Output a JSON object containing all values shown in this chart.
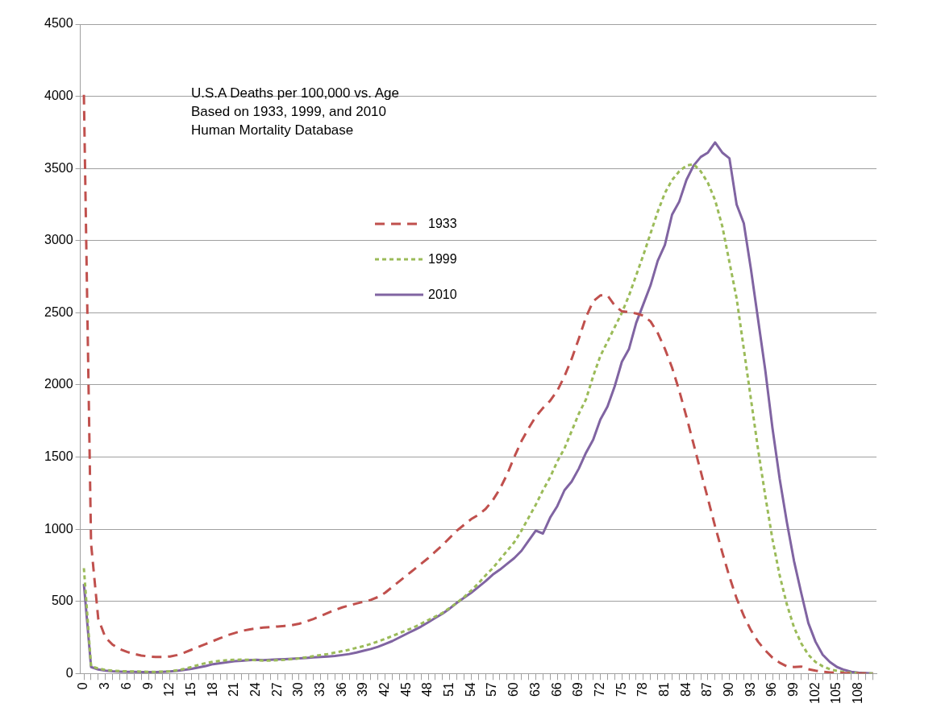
{
  "chart_data": {
    "type": "line",
    "title": "U.S.A Deaths per 100,000 vs. Age",
    "subtitle": "Based on 1933, 1999, and 2010",
    "annotations": [
      "Human Mortality Database"
    ],
    "categories": [
      "0",
      null,
      null,
      "3",
      null,
      null,
      "6",
      null,
      null,
      "9",
      null,
      null,
      "12",
      null,
      null,
      "15",
      null,
      null,
      "18",
      null,
      null,
      "21",
      null,
      null,
      "24",
      null,
      null,
      "27",
      null,
      null,
      "30",
      null,
      null,
      "33",
      null,
      null,
      "36",
      null,
      null,
      "39",
      null,
      null,
      "42",
      null,
      null,
      "45",
      null,
      null,
      "48",
      null,
      null,
      "51",
      null,
      null,
      "54",
      null,
      null,
      "57",
      null,
      null,
      "60",
      null,
      null,
      "63",
      null,
      null,
      "66",
      null,
      null,
      "69",
      null,
      null,
      "72",
      null,
      null,
      "75",
      null,
      null,
      "78",
      null,
      null,
      "81",
      null,
      null,
      "84",
      null,
      null,
      "87",
      null,
      null,
      "90",
      null,
      null,
      "93",
      null,
      null,
      "96",
      null,
      null,
      "99",
      null,
      null,
      "102",
      null,
      null,
      "105",
      null,
      null,
      "108",
      null,
      null
    ],
    "series": [
      {
        "name": "1933",
        "color": "#c0504d",
        "line_style": "dashed",
        "values": [
          4010,
          900,
          380,
          250,
          200,
          170,
          150,
          135,
          125,
          118,
          115,
          115,
          118,
          128,
          145,
          165,
          185,
          205,
          225,
          245,
          265,
          280,
          295,
          305,
          312,
          318,
          322,
          326,
          330,
          335,
          345,
          360,
          378,
          398,
          420,
          440,
          458,
          472,
          485,
          497,
          510,
          530,
          560,
          600,
          640,
          680,
          720,
          760,
          800,
          845,
          890,
          940,
          990,
          1030,
          1070,
          1100,
          1140,
          1200,
          1280,
          1380,
          1500,
          1610,
          1700,
          1780,
          1840,
          1890,
          1960,
          2060,
          2180,
          2320,
          2470,
          2580,
          2620,
          2620,
          2550,
          2510,
          2505,
          2495,
          2480,
          2440,
          2360,
          2250,
          2120,
          1960,
          1780,
          1590,
          1400,
          1210,
          1020,
          840,
          670,
          520,
          400,
          300,
          220,
          160,
          110,
          75,
          50,
          45,
          48,
          30,
          20,
          12,
          8,
          5,
          3,
          2,
          1,
          0,
          0
        ]
      },
      {
        "name": "1999",
        "color": "#9bbb59",
        "line_style": "dotted",
        "values": [
          730,
          50,
          35,
          25,
          20,
          17,
          15,
          14,
          13,
          12,
          12,
          13,
          16,
          22,
          32,
          45,
          60,
          72,
          82,
          88,
          92,
          95,
          96,
          95,
          93,
          90,
          90,
          92,
          95,
          100,
          105,
          112,
          120,
          128,
          135,
          145,
          155,
          165,
          178,
          190,
          205,
          222,
          240,
          260,
          280,
          300,
          320,
          345,
          370,
          395,
          420,
          455,
          490,
          530,
          575,
          625,
          680,
          730,
          790,
          850,
          910,
          990,
          1080,
          1170,
          1270,
          1360,
          1470,
          1560,
          1680,
          1800,
          1900,
          2060,
          2200,
          2300,
          2400,
          2500,
          2620,
          2760,
          2900,
          3050,
          3200,
          3330,
          3420,
          3480,
          3520,
          3530,
          3480,
          3400,
          3280,
          3100,
          2850,
          2600,
          2250,
          1900,
          1550,
          1230,
          930,
          680,
          480,
          320,
          210,
          130,
          80,
          50,
          30,
          18,
          10,
          5,
          3,
          1,
          0
        ]
      },
      {
        "name": "2010",
        "color": "#8064a2",
        "line_style": "solid",
        "values": [
          620,
          45,
          28,
          20,
          15,
          13,
          12,
          11,
          10,
          10,
          10,
          12,
          14,
          18,
          25,
          32,
          42,
          52,
          65,
          72,
          78,
          85,
          88,
          92,
          95,
          92,
          95,
          98,
          100,
          102,
          105,
          108,
          112,
          115,
          118,
          122,
          128,
          135,
          145,
          158,
          170,
          185,
          205,
          225,
          250,
          275,
          300,
          325,
          355,
          385,
          415,
          450,
          490,
          525,
          560,
          600,
          640,
          685,
          720,
          760,
          800,
          850,
          920,
          990,
          970,
          1080,
          1160,
          1270,
          1330,
          1420,
          1530,
          1620,
          1760,
          1850,
          1990,
          2160,
          2250,
          2430,
          2560,
          2690,
          2860,
          2970,
          3180,
          3270,
          3420,
          3520,
          3580,
          3610,
          3680,
          3610,
          3570,
          3250,
          3120,
          2800,
          2450,
          2100,
          1700,
          1350,
          1050,
          780,
          560,
          350,
          220,
          130,
          80,
          45,
          25,
          12,
          6,
          3,
          1
        ]
      }
    ],
    "ylim": [
      0,
      4500
    ],
    "yticks": [
      0,
      500,
      1000,
      1500,
      2000,
      2500,
      3000,
      3500,
      4000,
      4500
    ],
    "grid": "y",
    "legend": "top",
    "marker": "none"
  }
}
